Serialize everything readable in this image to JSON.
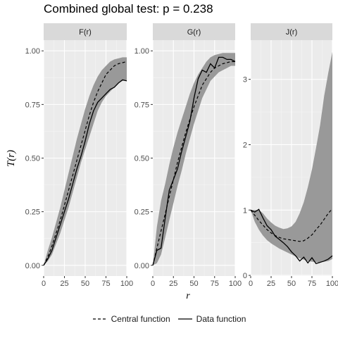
{
  "title": "Combined global test: p = 0.238",
  "chart_data": {
    "type": "line",
    "title": "Combined global test: p = 0.238",
    "ylabel": "T(r)",
    "xlabel": "r",
    "legend_position": "bottom",
    "legend": [
      {
        "name": "Central function",
        "linetype": "dashed"
      },
      {
        "name": "Data function",
        "linetype": "solid"
      }
    ],
    "envelope_color": "#999999",
    "panel_background": "#ebebeb",
    "grid": true,
    "panels": [
      {
        "label": "F(r)",
        "xlim": [
          0,
          100
        ],
        "ylim": [
          -0.05,
          1.05
        ],
        "xticks": [
          0,
          25,
          50,
          75,
          100
        ],
        "yticks": [
          0.0,
          0.25,
          0.5,
          0.75,
          1.0
        ],
        "ytick_labels": [
          "0.00",
          "0.25",
          "0.50",
          "0.75",
          "1.00"
        ],
        "x": [
          0,
          5,
          10,
          15,
          20,
          25,
          30,
          35,
          40,
          45,
          50,
          55,
          60,
          65,
          70,
          75,
          80,
          85,
          90,
          95,
          100
        ],
        "central": [
          0,
          0.04,
          0.09,
          0.15,
          0.21,
          0.28,
          0.35,
          0.42,
          0.49,
          0.56,
          0.63,
          0.7,
          0.76,
          0.81,
          0.85,
          0.89,
          0.91,
          0.93,
          0.94,
          0.945,
          0.95
        ],
        "data": [
          0,
          0.03,
          0.07,
          0.13,
          0.19,
          0.25,
          0.31,
          0.38,
          0.45,
          0.51,
          0.58,
          0.66,
          0.72,
          0.76,
          0.78,
          0.8,
          0.82,
          0.83,
          0.85,
          0.865,
          0.86
        ],
        "lower": [
          0,
          0.02,
          0.05,
          0.1,
          0.15,
          0.21,
          0.27,
          0.34,
          0.41,
          0.48,
          0.54,
          0.6,
          0.66,
          0.72,
          0.76,
          0.79,
          0.81,
          0.83,
          0.85,
          0.86,
          0.86
        ],
        "upper": [
          0,
          0.07,
          0.13,
          0.2,
          0.27,
          0.35,
          0.43,
          0.51,
          0.59,
          0.66,
          0.73,
          0.79,
          0.84,
          0.88,
          0.91,
          0.93,
          0.95,
          0.96,
          0.965,
          0.97,
          0.97
        ]
      },
      {
        "label": "G(r)",
        "xlim": [
          0,
          100
        ],
        "ylim": [
          -0.05,
          1.05
        ],
        "xticks": [
          0,
          25,
          50,
          75,
          100
        ],
        "yticks": [
          0.0,
          0.25,
          0.5,
          0.75,
          1.0
        ],
        "ytick_labels": [
          "0.00",
          "0.25",
          "0.50",
          "0.75",
          "1.00"
        ],
        "x": [
          0,
          5,
          10,
          15,
          20,
          25,
          30,
          35,
          40,
          45,
          50,
          55,
          60,
          65,
          70,
          75,
          80,
          85,
          90,
          95,
          100
        ],
        "central": [
          0,
          0.08,
          0.16,
          0.24,
          0.32,
          0.4,
          0.48,
          0.55,
          0.62,
          0.68,
          0.74,
          0.79,
          0.84,
          0.87,
          0.9,
          0.92,
          0.93,
          0.94,
          0.945,
          0.95,
          0.95
        ],
        "data": [
          0,
          0.07,
          0.08,
          0.22,
          0.35,
          0.4,
          0.45,
          0.53,
          0.6,
          0.67,
          0.78,
          0.87,
          0.91,
          0.9,
          0.94,
          0.92,
          0.97,
          0.97,
          0.96,
          0.96,
          0.95
        ],
        "lower": [
          0,
          0.01,
          0.05,
          0.13,
          0.21,
          0.29,
          0.37,
          0.44,
          0.52,
          0.59,
          0.66,
          0.72,
          0.78,
          0.82,
          0.86,
          0.88,
          0.9,
          0.91,
          0.92,
          0.93,
          0.93
        ],
        "upper": [
          0,
          0.18,
          0.3,
          0.38,
          0.47,
          0.55,
          0.62,
          0.68,
          0.74,
          0.8,
          0.85,
          0.89,
          0.92,
          0.95,
          0.97,
          0.98,
          0.985,
          0.99,
          0.99,
          0.99,
          0.99
        ]
      },
      {
        "label": "J(r)",
        "xlim": [
          0,
          100
        ],
        "ylim": [
          -0.01,
          3.6
        ],
        "xticks": [
          0,
          25,
          50,
          75,
          100
        ],
        "yticks": [
          0,
          1,
          2,
          3
        ],
        "ytick_labels": [
          "0",
          "1",
          "2",
          "3"
        ],
        "x": [
          0,
          5,
          10,
          15,
          20,
          25,
          30,
          35,
          40,
          45,
          50,
          55,
          60,
          65,
          70,
          75,
          80,
          85,
          90,
          95,
          100
        ],
        "central": [
          1.0,
          0.92,
          0.84,
          0.77,
          0.7,
          0.65,
          0.61,
          0.58,
          0.56,
          0.55,
          0.54,
          0.53,
          0.52,
          0.53,
          0.57,
          0.62,
          0.7,
          0.77,
          0.86,
          0.95,
          1.02
        ],
        "data": [
          1.0,
          0.97,
          1.01,
          0.88,
          0.76,
          0.7,
          0.6,
          0.55,
          0.5,
          0.44,
          0.36,
          0.3,
          0.22,
          0.28,
          0.19,
          0.27,
          0.18,
          0.2,
          0.22,
          0.25,
          0.3
        ],
        "lower": [
          1.0,
          0.82,
          0.7,
          0.61,
          0.54,
          0.49,
          0.45,
          0.41,
          0.38,
          0.35,
          0.32,
          0.29,
          0.26,
          0.24,
          0.22,
          0.21,
          0.2,
          0.2,
          0.21,
          0.22,
          0.25
        ],
        "upper": [
          1.0,
          1.0,
          1.0,
          0.95,
          0.87,
          0.81,
          0.76,
          0.73,
          0.71,
          0.72,
          0.75,
          0.82,
          0.95,
          1.12,
          1.35,
          1.62,
          1.95,
          2.3,
          2.75,
          3.1,
          3.42
        ]
      }
    ]
  }
}
